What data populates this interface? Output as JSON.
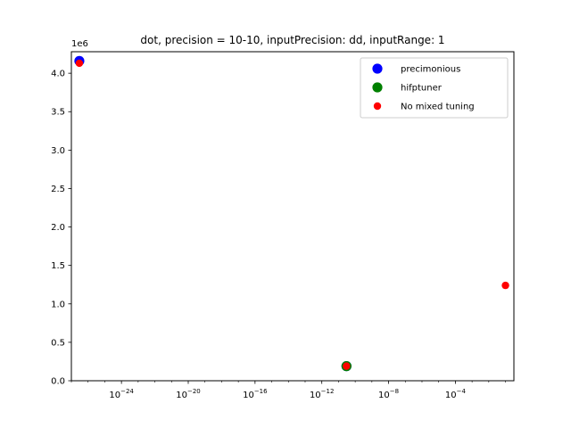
{
  "chart_data": {
    "type": "scatter",
    "title": "dot, precision = 10-10, inputPrecision: dd, inputRange: 1",
    "xlabel": "",
    "ylabel": "",
    "x_scale": "log",
    "xlim": [
      1e-27,
      0.32
    ],
    "x_ticks": [
      {
        "value": 1e-24,
        "base": "10",
        "exp": "−24"
      },
      {
        "value": 1e-20,
        "base": "10",
        "exp": "−20"
      },
      {
        "value": 1e-16,
        "base": "10",
        "exp": "−16"
      },
      {
        "value": 1e-12,
        "base": "10",
        "exp": "−12"
      },
      {
        "value": 1e-08,
        "base": "10",
        "exp": "−8"
      },
      {
        "value": 0.0001,
        "base": "10",
        "exp": "−4"
      }
    ],
    "ylim": [
      0,
      4.28
    ],
    "y_offset_label": "1e6",
    "y_ticks": [
      {
        "value": 0.0,
        "label": "0.0"
      },
      {
        "value": 0.5,
        "label": "0.5"
      },
      {
        "value": 1.0,
        "label": "1.0"
      },
      {
        "value": 1.5,
        "label": "1.5"
      },
      {
        "value": 2.0,
        "label": "2.0"
      },
      {
        "value": 2.5,
        "label": "2.5"
      },
      {
        "value": 3.0,
        "label": "3.0"
      },
      {
        "value": 3.5,
        "label": "3.5"
      },
      {
        "value": 4.0,
        "label": "4.0"
      }
    ],
    "legend_position": "top-right",
    "series": [
      {
        "name": "precimonious",
        "color": "#0000ff",
        "marker": "circle-large",
        "points": [
          {
            "x": 3e-27,
            "y": 4.16
          },
          {
            "x": 3e-11,
            "y": 0.19
          }
        ]
      },
      {
        "name": "hifptuner",
        "color": "#008000",
        "marker": "circle-large",
        "points": [
          {
            "x": 3e-11,
            "y": 0.19
          }
        ]
      },
      {
        "name": "No mixed tuning",
        "color": "#ff0000",
        "marker": "circle-small",
        "points": [
          {
            "x": 3e-27,
            "y": 4.13
          },
          {
            "x": 3e-11,
            "y": 0.19
          },
          {
            "x": 0.1,
            "y": 1.24
          }
        ]
      }
    ]
  }
}
